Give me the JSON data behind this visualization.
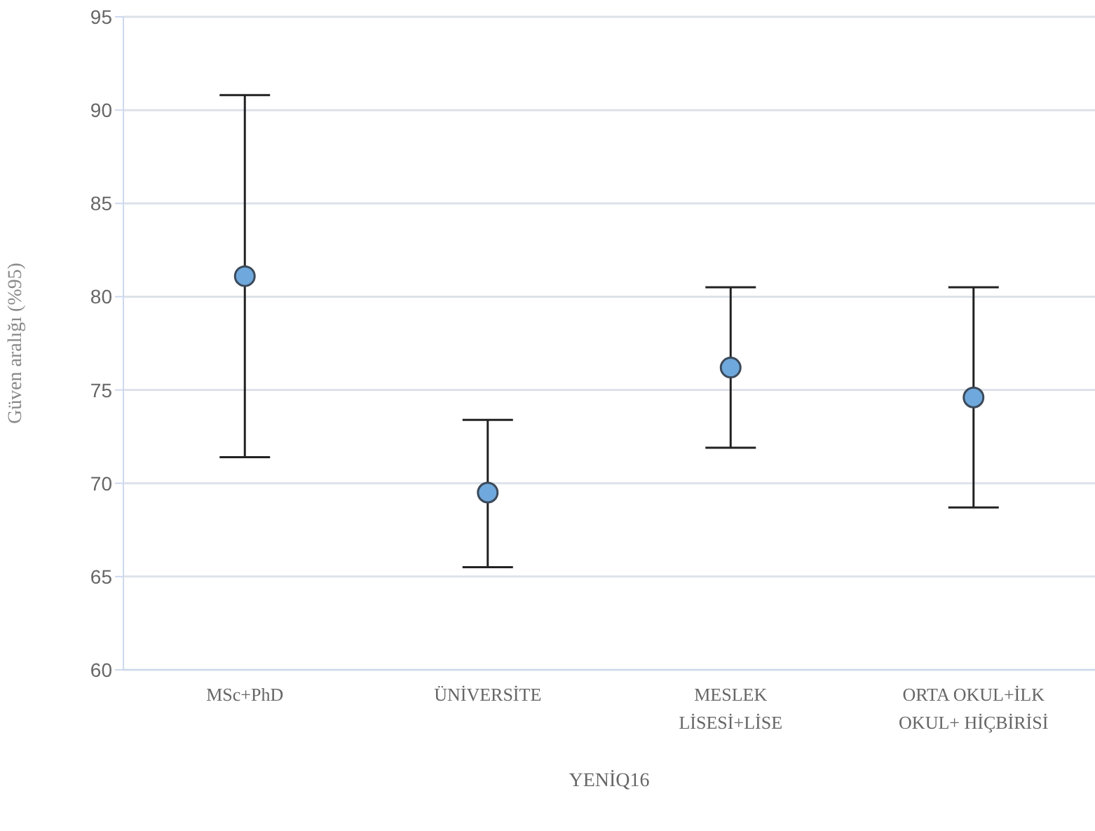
{
  "chart_data": {
    "type": "scatter",
    "categories": [
      "MSc+PhD",
      "ÜNİVERSİTE",
      "MESLEK LİSESİ+LİSE",
      "ORTA OKUL+İLK OKUL+ HİÇBİRİSİ"
    ],
    "values": [
      81.1,
      69.5,
      76.2,
      74.6
    ],
    "errors": [
      [
        71.4,
        90.8
      ],
      [
        65.5,
        73.4
      ],
      [
        71.9,
        80.5
      ],
      [
        68.7,
        80.5
      ]
    ],
    "color": "#6fa8dc",
    "marker": "circle",
    "ylim": [
      60,
      95
    ],
    "yticks": [
      60,
      65,
      70,
      75,
      80,
      85,
      90,
      95
    ],
    "ylabel": "Güven aralığı (%95)",
    "xlabel": "YENİQ16",
    "grid": "y"
  }
}
